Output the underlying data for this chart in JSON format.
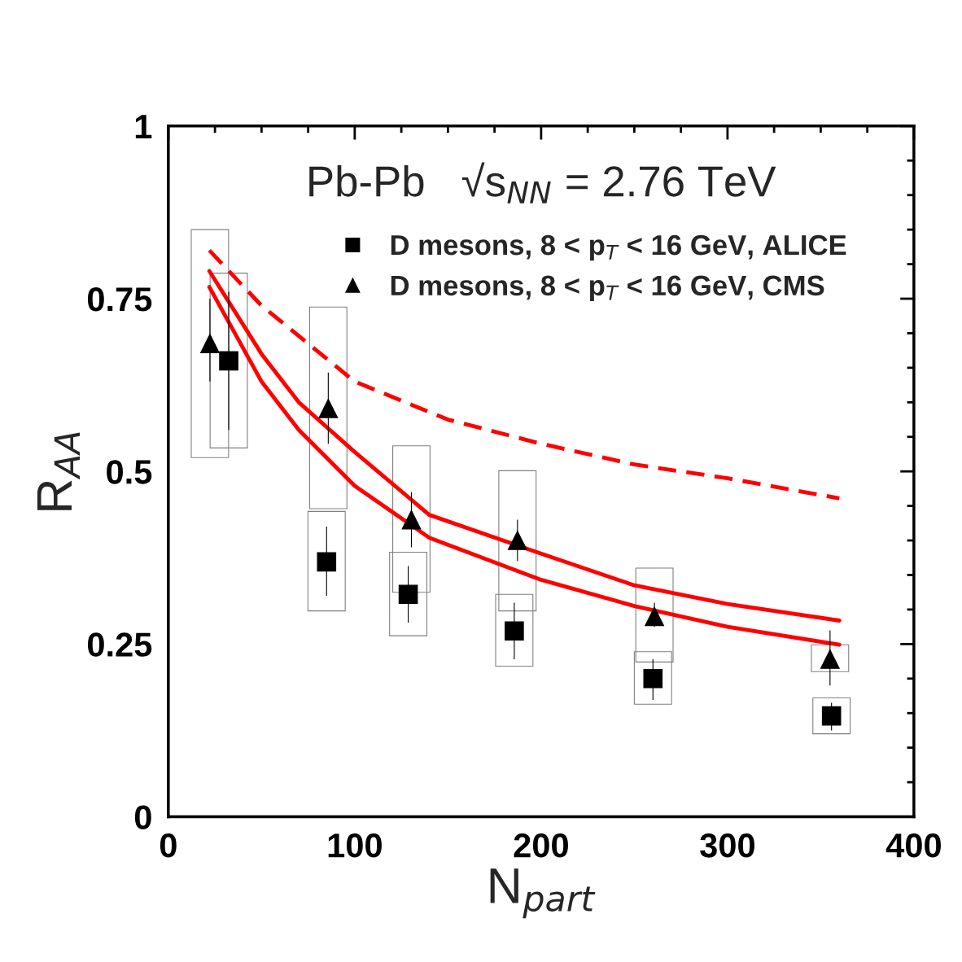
{
  "chart_data": {
    "type": "scatter",
    "title": "Pb-Pb   √s$_{NN}$ = 2.76 TeV",
    "xlabel": "N$_{part}$",
    "ylabel": "R$_{AA}$",
    "xlim": [
      0,
      400
    ],
    "ylim": [
      0,
      1
    ],
    "xticks": [
      0,
      100,
      200,
      300,
      400
    ],
    "yticks": [
      0,
      0.25,
      0.5,
      0.75,
      1
    ],
    "grid": false,
    "legend": "top",
    "series": [
      {
        "type": "bar",
        "color": "#808080",
        "x": [
          22.3,
          32.4,
          84.9,
          85.8,
          128.7,
          130.4,
          185.6,
          187.3,
          260,
          260.8,
          355,
          355.8
        ],
        "base": [
          0.52,
          0.534,
          0.298,
          0.446,
          0.262,
          0.325,
          0.218,
          0.298,
          0.163,
          0.224,
          0.21,
          0.12
        ],
        "values": [
          0.33,
          0.253,
          0.144,
          0.292,
          0.121,
          0.212,
          0.104,
          0.203,
          0.076,
          0.136,
          0.039,
          0.052
        ]
      },
      {
        "type": "line",
        "color": "#ff0000",
        "line_style": "dashed",
        "x": [
          22,
          50,
          100,
          150,
          200,
          250,
          300,
          360
        ],
        "values": [
          0.82,
          0.74,
          0.63,
          0.575,
          0.54,
          0.51,
          0.49,
          0.461
        ]
      },
      {
        "type": "line",
        "color": "#ff0000",
        "line_style": "solid",
        "x": [
          22,
          50,
          70,
          100,
          140,
          200,
          250,
          300,
          360
        ],
        "values": [
          0.79,
          0.67,
          0.6,
          0.528,
          0.437,
          0.381,
          0.335,
          0.308,
          0.284
        ]
      },
      {
        "type": "line",
        "color": "#ff0000",
        "line_style": "solid",
        "x": [
          22,
          50,
          70,
          100,
          140,
          200,
          250,
          300,
          360
        ],
        "values": [
          0.767,
          0.63,
          0.56,
          0.479,
          0.404,
          0.343,
          0.305,
          0.275,
          0.249
        ]
      },
      {
        "name": "D mesons, 8 < p$_{T}$ < 16 GeV, ALICE",
        "color": "#000000",
        "marker": "square",
        "x": [
          32.4,
          84.9,
          128.7,
          185.6,
          260,
          355.8
        ],
        "values": [
          0.66,
          0.369,
          0.322,
          0.269,
          0.2,
          0.146
        ],
        "errors": [
          [
            0.56,
            0.76
          ],
          [
            0.32,
            0.42
          ],
          [
            0.281,
            0.363
          ],
          [
            0.228,
            0.31
          ],
          [
            0.169,
            0.228
          ],
          [
            0.125,
            0.165
          ]
        ]
      },
      {
        "name": "D mesons, 8 < p$_{T}$ < 16 GeV, CMS",
        "color": "#000000",
        "marker": "triangle",
        "x": [
          22.3,
          85.8,
          130.4,
          187.3,
          260.8,
          355
        ],
        "values": [
          0.685,
          0.591,
          0.43,
          0.4,
          0.29,
          0.228
        ],
        "errors": [
          [
            0.63,
            0.75
          ],
          [
            0.54,
            0.643
          ],
          [
            0.39,
            0.47
          ],
          [
            0.37,
            0.43
          ],
          [
            0.275,
            0.31
          ],
          [
            0.19,
            0.27
          ]
        ]
      }
    ]
  }
}
